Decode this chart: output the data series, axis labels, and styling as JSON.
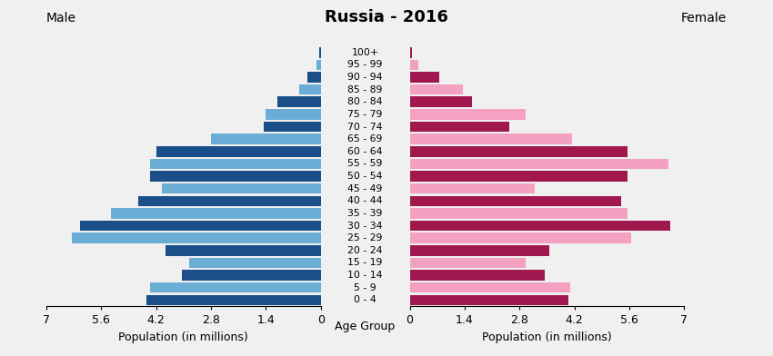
{
  "title": "Russia - 2016",
  "male_label": "Male",
  "female_label": "Female",
  "xlabel_left": "Population (in millions)",
  "xlabel_right": "Population (in millions)",
  "xlabel_center": "Age Group",
  "age_groups": [
    "0 - 4",
    "5 - 9",
    "10 - 14",
    "15 - 19",
    "20 - 24",
    "25 - 29",
    "30 - 34",
    "35 - 39",
    "40 - 44",
    "45 - 49",
    "50 - 54",
    "55 - 59",
    "60 - 64",
    "65 - 69",
    "70 - 74",
    "75 - 79",
    "80 - 84",
    "85 - 89",
    "90 - 94",
    "95 - 99",
    "100+"
  ],
  "male_values": [
    4.45,
    4.35,
    3.55,
    3.35,
    3.95,
    6.35,
    6.15,
    5.35,
    4.65,
    4.05,
    4.35,
    4.35,
    4.2,
    2.8,
    1.45,
    1.4,
    1.1,
    0.55,
    0.35,
    0.12,
    0.05
  ],
  "female_values": [
    4.05,
    4.1,
    3.45,
    2.95,
    3.55,
    5.65,
    6.65,
    5.55,
    5.4,
    3.2,
    5.55,
    6.6,
    5.55,
    4.15,
    2.55,
    2.95,
    1.6,
    1.35,
    0.75,
    0.22,
    0.05
  ],
  "male_dark_color": "#1a4f8a",
  "male_light_color": "#6aaed6",
  "female_dark_color": "#a0184e",
  "female_light_color": "#f4a0c0",
  "xlim": 7.0,
  "background_color": "#f0f0f0",
  "title_fontsize": 13,
  "label_fontsize": 9,
  "tick_fontsize": 9,
  "age_label_fontsize": 7.8
}
